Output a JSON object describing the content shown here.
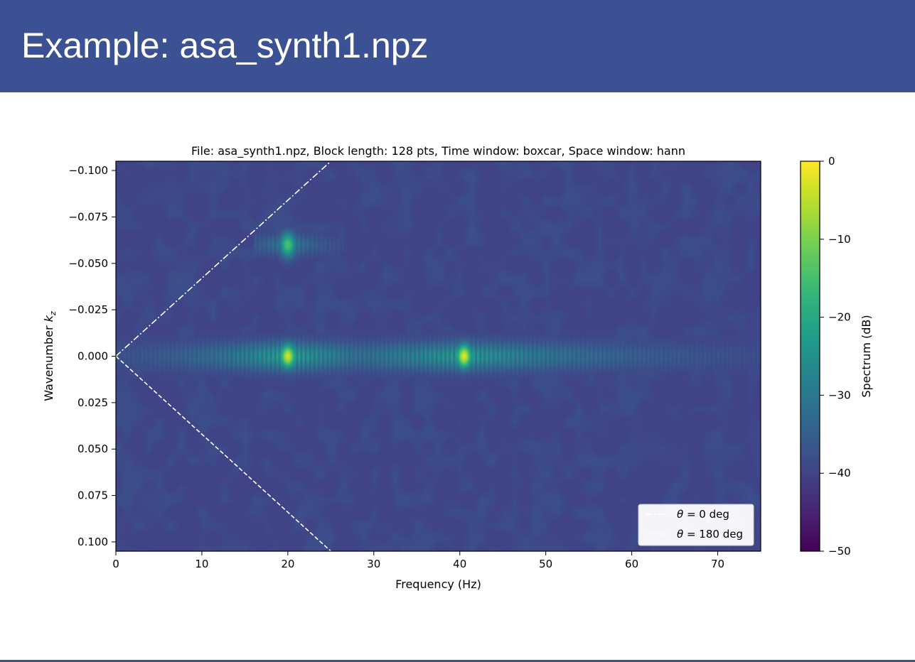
{
  "slide": {
    "title": "Example: asa_synth1.npz",
    "colors": {
      "header_bg": "#3c5193",
      "header_text": "#ffffff"
    }
  },
  "chart_data": {
    "type": "heatmap",
    "title": "File: asa_synth1.npz, Block length: 128 pts, Time window: boxcar, Space window: hann",
    "xlabel": "Frequency (Hz)",
    "ylabel": "Wavenumber k_z",
    "xlim": [
      0,
      75
    ],
    "ylim": [
      -0.105,
      0.105
    ],
    "y_inverted": true,
    "x_ticks": [
      0,
      10,
      20,
      30,
      40,
      50,
      60,
      70
    ],
    "x_tick_labels": [
      "0",
      "10",
      "20",
      "30",
      "40",
      "50",
      "60",
      "70"
    ],
    "y_ticks": [
      -0.1,
      -0.075,
      -0.05,
      -0.025,
      0.0,
      0.025,
      0.05,
      0.075,
      0.1
    ],
    "y_tick_labels": [
      "−0.100",
      "−0.075",
      "−0.050",
      "−0.025",
      "0.000",
      "0.025",
      "0.050",
      "0.075",
      "0.100"
    ],
    "colormap": "viridis",
    "colorbar": {
      "label": "Spectrum (dB)",
      "range": [
        -50,
        0
      ],
      "ticks": [
        0,
        -10,
        -20,
        -30,
        -40,
        -50
      ],
      "tick_labels": [
        "0",
        "−10",
        "−20",
        "−30",
        "−40",
        "−50"
      ]
    },
    "noise_floor_db": -40,
    "peaks": [
      {
        "frequency_hz": 20,
        "wavenumber": 0.0,
        "level_db": -3
      },
      {
        "frequency_hz": 40.5,
        "wavenumber": 0.0,
        "level_db": -2
      },
      {
        "frequency_hz": 20,
        "wavenumber": -0.06,
        "level_db": -14
      }
    ],
    "lines": [
      {
        "label": "θ = 0 deg",
        "style": "dashdot",
        "color": "#ffffff",
        "x": [
          0,
          25
        ],
        "y": [
          0,
          -0.105
        ]
      },
      {
        "label": "θ = 180 deg",
        "style": "dashed",
        "color": "#ffffff",
        "x": [
          0,
          25
        ],
        "y": [
          0,
          0.105
        ]
      }
    ],
    "legend_position": "lower-right"
  }
}
